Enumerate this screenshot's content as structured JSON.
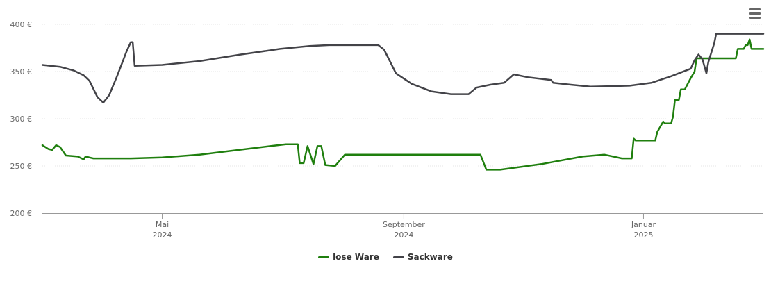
{
  "chart_data": {
    "type": "line",
    "title": "",
    "xlabel": "",
    "ylabel": "",
    "ylim": [
      200,
      400
    ],
    "xlim": [
      "2024-03-01",
      "2025-03-03"
    ],
    "grid": true,
    "legend_position": "bottom-center",
    "y_ticks": [
      {
        "value": 200,
        "label": "200 €"
      },
      {
        "value": 250,
        "label": "250 €"
      },
      {
        "value": 300,
        "label": "300 €"
      },
      {
        "value": 350,
        "label": "350 €"
      },
      {
        "value": 400,
        "label": "400 €"
      }
    ],
    "x_ticks": [
      {
        "date": "2024-05-01",
        "month": "Mai",
        "year": "2024"
      },
      {
        "date": "2024-09-01",
        "month": "September",
        "year": "2024"
      },
      {
        "date": "2025-01-01",
        "month": "Januar",
        "year": "2025"
      }
    ],
    "series": [
      {
        "name": "lose Ware",
        "color": "#1f7f0e",
        "points": [
          [
            "2024-03-01",
            272
          ],
          [
            "2024-03-04",
            268
          ],
          [
            "2024-03-06",
            267
          ],
          [
            "2024-03-08",
            272
          ],
          [
            "2024-03-10",
            270
          ],
          [
            "2024-03-13",
            261
          ],
          [
            "2024-03-19",
            260
          ],
          [
            "2024-03-22",
            257
          ],
          [
            "2024-03-23",
            260
          ],
          [
            "2024-03-25",
            259
          ],
          [
            "2024-03-27",
            258
          ],
          [
            "2024-04-15",
            258
          ],
          [
            "2024-05-01",
            259
          ],
          [
            "2024-05-20",
            262
          ],
          [
            "2024-06-05",
            266
          ],
          [
            "2024-06-25",
            271
          ],
          [
            "2024-07-03",
            273
          ],
          [
            "2024-07-09",
            273
          ],
          [
            "2024-07-10",
            253
          ],
          [
            "2024-07-12",
            253
          ],
          [
            "2024-07-14",
            271
          ],
          [
            "2024-07-17",
            252
          ],
          [
            "2024-07-19",
            271
          ],
          [
            "2024-07-21",
            271
          ],
          [
            "2024-07-23",
            251
          ],
          [
            "2024-07-28",
            250
          ],
          [
            "2024-08-02",
            262
          ],
          [
            "2024-08-10",
            262
          ],
          [
            "2024-10-10",
            262
          ],
          [
            "2024-10-13",
            246
          ],
          [
            "2024-10-20",
            246
          ],
          [
            "2024-11-10",
            252
          ],
          [
            "2024-12-01",
            260
          ],
          [
            "2024-12-12",
            262
          ],
          [
            "2024-12-21",
            258
          ],
          [
            "2024-12-26",
            258
          ],
          [
            "2024-12-27",
            279
          ],
          [
            "2024-12-28",
            277
          ],
          [
            "2025-01-07",
            277
          ],
          [
            "2025-01-08",
            286
          ],
          [
            "2025-01-11",
            297
          ],
          [
            "2025-01-12",
            295
          ],
          [
            "2025-01-15",
            295
          ],
          [
            "2025-01-16",
            302
          ],
          [
            "2025-01-17",
            320
          ],
          [
            "2025-01-19",
            320
          ],
          [
            "2025-01-20",
            331
          ],
          [
            "2025-01-22",
            331
          ],
          [
            "2025-01-25",
            343
          ],
          [
            "2025-01-27",
            350
          ],
          [
            "2025-01-28",
            364
          ],
          [
            "2025-02-17",
            364
          ],
          [
            "2025-02-18",
            374
          ],
          [
            "2025-02-21",
            374
          ],
          [
            "2025-02-22",
            378
          ],
          [
            "2025-02-23",
            378
          ],
          [
            "2025-02-24",
            384
          ],
          [
            "2025-02-25",
            374
          ],
          [
            "2025-03-03",
            374
          ]
        ]
      },
      {
        "name": "Sackware",
        "color": "#434348",
        "points": [
          [
            "2024-03-01",
            357
          ],
          [
            "2024-03-10",
            355
          ],
          [
            "2024-03-17",
            351
          ],
          [
            "2024-03-22",
            346
          ],
          [
            "2024-03-25",
            340
          ],
          [
            "2024-03-29",
            323
          ],
          [
            "2024-04-01",
            317
          ],
          [
            "2024-04-04",
            325
          ],
          [
            "2024-04-08",
            345
          ],
          [
            "2024-04-13",
            372
          ],
          [
            "2024-04-15",
            381
          ],
          [
            "2024-04-16",
            381
          ],
          [
            "2024-04-17",
            356
          ],
          [
            "2024-05-01",
            357
          ],
          [
            "2024-05-20",
            361
          ],
          [
            "2024-06-10",
            368
          ],
          [
            "2024-06-30",
            374
          ],
          [
            "2024-07-15",
            377
          ],
          [
            "2024-07-25",
            378
          ],
          [
            "2024-08-19",
            378
          ],
          [
            "2024-08-22",
            373
          ],
          [
            "2024-08-28",
            348
          ],
          [
            "2024-09-05",
            337
          ],
          [
            "2024-09-15",
            329
          ],
          [
            "2024-09-25",
            326
          ],
          [
            "2024-10-04",
            326
          ],
          [
            "2024-10-08",
            333
          ],
          [
            "2024-10-15",
            336
          ],
          [
            "2024-10-22",
            338
          ],
          [
            "2024-10-27",
            347
          ],
          [
            "2024-11-03",
            344
          ],
          [
            "2024-11-15",
            341
          ],
          [
            "2024-11-16",
            338
          ],
          [
            "2024-11-25",
            336
          ],
          [
            "2024-12-05",
            334
          ],
          [
            "2024-12-25",
            335
          ],
          [
            "2025-01-05",
            338
          ],
          [
            "2025-01-15",
            345
          ],
          [
            "2025-01-25",
            353
          ],
          [
            "2025-01-27",
            362
          ],
          [
            "2025-01-29",
            368
          ],
          [
            "2025-01-31",
            363
          ],
          [
            "2025-02-02",
            348
          ],
          [
            "2025-02-03",
            360
          ],
          [
            "2025-02-06",
            380
          ],
          [
            "2025-02-07",
            390
          ],
          [
            "2025-03-03",
            390
          ]
        ]
      }
    ]
  },
  "legend": {
    "items": [
      {
        "label": "lose Ware"
      },
      {
        "label": "Sackware"
      }
    ]
  },
  "menu": {
    "icon": "hamburger-menu-icon"
  }
}
